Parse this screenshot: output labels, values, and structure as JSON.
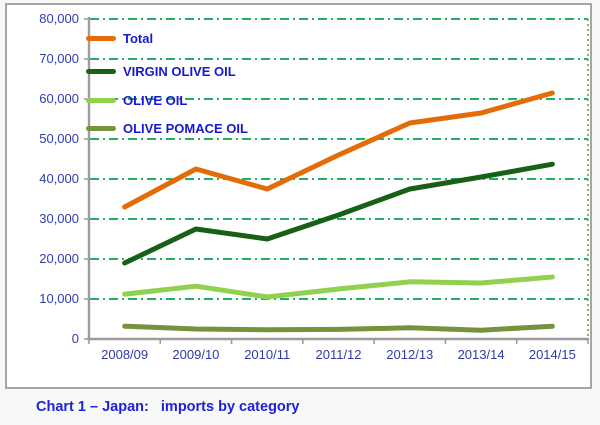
{
  "caption": "Chart 1 – Japan:   imports by category",
  "colors": {
    "total": "#E36C09",
    "virgin_olive_oil": "#186018",
    "olive_oil": "#92D050",
    "olive_pomace_oil": "#76923C",
    "gridline": "#00A551",
    "axis": "#9C9C9C",
    "axis_label": "#2E3CA8",
    "legend_text": "#1818D2",
    "caption_text": "#2020DC",
    "plot_right_border": "#7E9A44",
    "chart_border": "#A6A6A6"
  },
  "chart_data": {
    "type": "line",
    "title": "",
    "xlabel": "",
    "ylabel": "",
    "categories": [
      "2008/09",
      "2009/10",
      "2010/11",
      "2011/12",
      "2012/13",
      "2013/14",
      "2014/15"
    ],
    "series": [
      {
        "name": "Total",
        "color_key": "total",
        "values": [
          33000,
          42500,
          37500,
          46000,
          54000,
          56500,
          61500
        ]
      },
      {
        "name": "VIRGIN OLIVE OIL",
        "color_key": "virgin_olive_oil",
        "values": [
          19000,
          27500,
          25000,
          31000,
          37500,
          40500,
          43700
        ]
      },
      {
        "name": "OLIVE OIL",
        "color_key": "olive_oil",
        "values": [
          11200,
          13200,
          10500,
          12500,
          14300,
          14000,
          15500
        ]
      },
      {
        "name": "OLIVE POMACE OIL",
        "color_key": "olive_pomace_oil",
        "values": [
          3200,
          2500,
          2300,
          2400,
          2800,
          2200,
          3200
        ]
      }
    ],
    "ylim": [
      0,
      80000
    ],
    "ytick_step": 10000,
    "ytick_labels": [
      "0",
      "10,000",
      "20,000",
      "30,000",
      "40,000",
      "50,000",
      "60,000",
      "70,000",
      "80,000"
    ],
    "grid": "horizontal dash-dot green lines",
    "legend_position": "inside top-left"
  }
}
